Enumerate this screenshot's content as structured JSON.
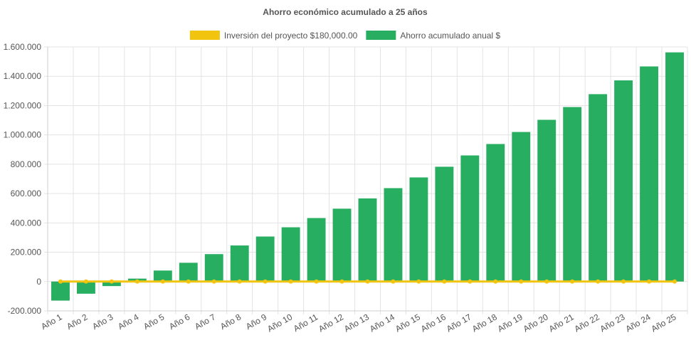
{
  "chart_data": {
    "type": "bar",
    "title": "Ahorro económico acumulado a 25 años",
    "xlabel": "",
    "ylabel": "",
    "categories": [
      "Año 1",
      "Año 2",
      "Año 3",
      "Año 4",
      "Año 5",
      "Año 6",
      "Año 7",
      "Año 8",
      "Año 9",
      "Año 10",
      "Año 11",
      "Año 12",
      "Año 13",
      "Año 14",
      "Año 15",
      "Año 16",
      "Año 17",
      "Año 18",
      "Año 19",
      "Año 20",
      "Año 21",
      "Año 22",
      "Año 23",
      "Año 24",
      "Año 25"
    ],
    "ylim": [
      -200000,
      1600000
    ],
    "yticks": [
      -200000,
      0,
      200000,
      400000,
      600000,
      800000,
      1000000,
      1200000,
      1400000,
      1600000
    ],
    "ytick_labels": [
      "-200.000",
      "0",
      "200.000",
      "400.000",
      "600.000",
      "800.000",
      "1.000.000",
      "1.200.000",
      "1.400.000",
      "1.600.000"
    ],
    "grid": true,
    "legend_position": "top-center",
    "series": [
      {
        "name": "Inversión del proyecto $180,000.00",
        "kind": "line",
        "color": "#f1c40f",
        "values": [
          0,
          0,
          0,
          0,
          0,
          0,
          0,
          0,
          0,
          0,
          0,
          0,
          0,
          0,
          0,
          0,
          0,
          0,
          0,
          0,
          0,
          0,
          0,
          0,
          0
        ]
      },
      {
        "name": "Ahorro acumulado anual $",
        "kind": "bar",
        "color": "#27ae60",
        "values": [
          -130000,
          -83000,
          -31000,
          20000,
          75000,
          128000,
          187000,
          246000,
          307000,
          370000,
          433000,
          497000,
          567000,
          637000,
          710000,
          783000,
          860000,
          938000,
          1020000,
          1103000,
          1190000,
          1278000,
          1372000,
          1467000,
          1563000
        ]
      }
    ]
  }
}
